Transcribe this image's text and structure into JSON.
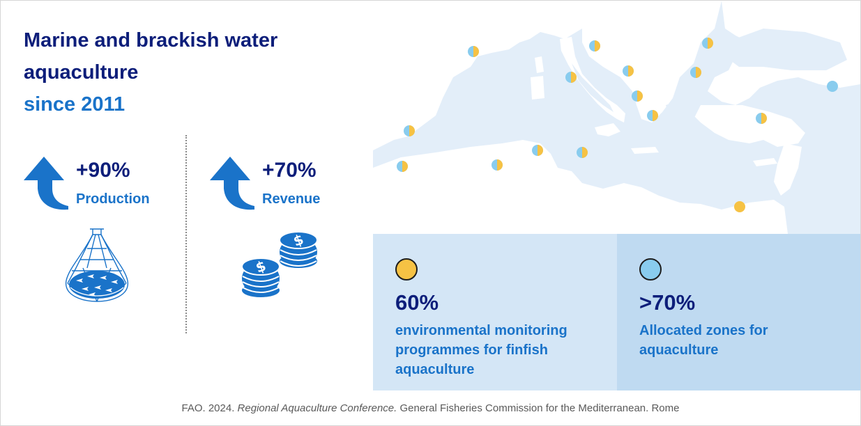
{
  "title": {
    "line1": "Marine and brackish water",
    "line2": "aquaculture",
    "line3": "since 2011"
  },
  "stats": [
    {
      "value": "+90%",
      "label": "Production",
      "icon": "fishing-net-icon"
    },
    {
      "value": "+70%",
      "label": "Revenue",
      "icon": "dollar-coins-icon"
    }
  ],
  "map": {
    "region": "Mediterranean and Black Sea",
    "marker_colors": {
      "monitoring": "#f6c244",
      "zones": "#89ccee"
    }
  },
  "legend": [
    {
      "value": "60%",
      "text": "environmental monitoring programmes for finfish aquaculture",
      "color": "#f6c244"
    },
    {
      "value": ">70%",
      "text": "Allocated zones for aquaculture",
      "color": "#89ccee"
    }
  ],
  "source": {
    "prefix": "FAO. 2024. ",
    "italic": "Regional Aquaculture Conference.",
    "suffix": " General Fisheries Commission for the Mediterranean. Rome"
  },
  "colors": {
    "navy": "#0d1e7a",
    "blue": "#1a73c9",
    "sea": "#e3eef9",
    "legend_left_bg": "#d4e6f6",
    "legend_right_bg": "#bfdaf1"
  }
}
